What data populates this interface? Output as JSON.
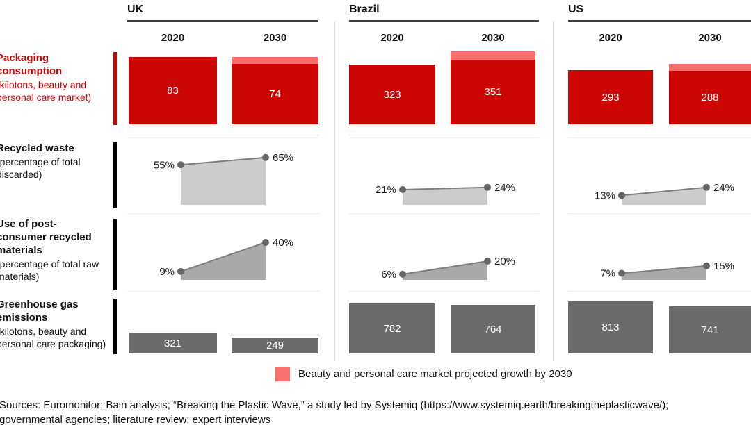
{
  "countries": [
    "UK",
    "Brazil",
    "US"
  ],
  "years": [
    "2020",
    "2030"
  ],
  "metrics": [
    {
      "title": "Packaging consumption",
      "subtitle": "(kilotons, beauty and personal care market)"
    },
    {
      "title": "Recycled waste",
      "subtitle": "(percentage of total discarded)"
    },
    {
      "title": "Use of post-consumer recycled materials",
      "subtitle": "(percentage of total raw materials)"
    },
    {
      "title": "Greenhouse gas emissions",
      "subtitle": "(kilotons, beauty and personal care packaging)"
    }
  ],
  "legend": {
    "label": "Beauty and personal care market projected growth by 2030"
  },
  "sources": {
    "line1": "Sources: Euromonitor; Bain analysis; “Breaking the Plastic Wave,” a study led by Systemiq (https://www.systemiq.earth/breakingtheplasticwave/);",
    "line2": "governmental agencies; literature review; expert interviews"
  },
  "colors": {
    "red": "#cc0505",
    "pink": "#fa6e6e",
    "dark_gray_bar": "#6b6b6b",
    "light_gray_area": "#cccccc",
    "mid_gray_area": "#a9a9a9",
    "dot_gray": "#666666",
    "line_gray": "#7d7d7d"
  },
  "chart_data": [
    {
      "type": "bar",
      "title": "Packaging consumption (kilotons, beauty and personal care market)",
      "categories": [
        "2020",
        "2030"
      ],
      "series": [
        {
          "name": "UK",
          "values": [
            83,
            74
          ]
        },
        {
          "name": "Brazil",
          "values": [
            323,
            351
          ]
        },
        {
          "name": "US",
          "values": [
            293,
            288
          ]
        }
      ],
      "note": "2030 bars carry an unlabeled pink cap = beauty and personal care market projected growth by 2030"
    },
    {
      "type": "area",
      "title": "Recycled waste (percentage of total discarded)",
      "x": [
        "2020",
        "2030"
      ],
      "unit": "%",
      "series": [
        {
          "name": "UK",
          "values": [
            55,
            65
          ]
        },
        {
          "name": "Brazil",
          "values": [
            21,
            24
          ]
        },
        {
          "name": "US",
          "values": [
            13,
            24
          ]
        }
      ]
    },
    {
      "type": "area",
      "title": "Use of post-consumer recycled materials (percentage of total raw materials)",
      "x": [
        "2020",
        "2030"
      ],
      "unit": "%",
      "series": [
        {
          "name": "UK",
          "values": [
            9,
            40
          ]
        },
        {
          "name": "Brazil",
          "values": [
            6,
            20
          ]
        },
        {
          "name": "US",
          "values": [
            7,
            15
          ]
        }
      ]
    },
    {
      "type": "bar",
      "title": "Greenhouse gas emissions (kilotons, beauty and personal care packaging)",
      "categories": [
        "2020",
        "2030"
      ],
      "series": [
        {
          "name": "UK",
          "values": [
            321,
            249
          ]
        },
        {
          "name": "Brazil",
          "values": [
            782,
            764
          ]
        },
        {
          "name": "US",
          "values": [
            813,
            741
          ]
        }
      ]
    }
  ]
}
